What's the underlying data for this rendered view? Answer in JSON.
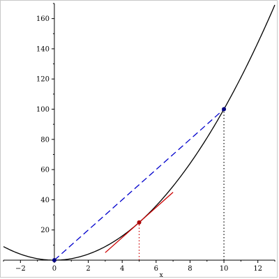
{
  "chart_data": {
    "type": "line",
    "xlabel": "x",
    "ylabel": "",
    "xlim": [
      -3,
      13
    ],
    "ylim": [
      0,
      170
    ],
    "x_ticks": [
      -2,
      0,
      2,
      4,
      6,
      8,
      10,
      12
    ],
    "y_ticks": [
      20,
      40,
      60,
      80,
      100,
      120,
      140,
      160
    ],
    "grid": false,
    "series": [
      {
        "kind": "curve",
        "function": "x^2",
        "domain": [
          -3,
          13
        ],
        "color": "#000000",
        "style": "solid"
      },
      {
        "kind": "segment",
        "x": [
          0,
          10
        ],
        "y": [
          0,
          100
        ],
        "color": "#0000cc",
        "style": "dashed"
      },
      {
        "kind": "segment",
        "x": [
          3,
          7
        ],
        "y": [
          5,
          45
        ],
        "color": "#cc0000",
        "style": "solid"
      },
      {
        "kind": "vertical-guide",
        "x": [
          5,
          5
        ],
        "y": [
          0,
          25
        ],
        "color": "#cc0000",
        "style": "dotted"
      },
      {
        "kind": "vertical-guide",
        "x": [
          10,
          10
        ],
        "y": [
          0,
          100
        ],
        "color": "#000000",
        "style": "dotted"
      }
    ],
    "points": [
      {
        "x": 0,
        "y": 0,
        "color": "#000080"
      },
      {
        "x": 5,
        "y": 25,
        "color": "#aa0000"
      },
      {
        "x": 10,
        "y": 100,
        "color": "#000080"
      }
    ]
  }
}
